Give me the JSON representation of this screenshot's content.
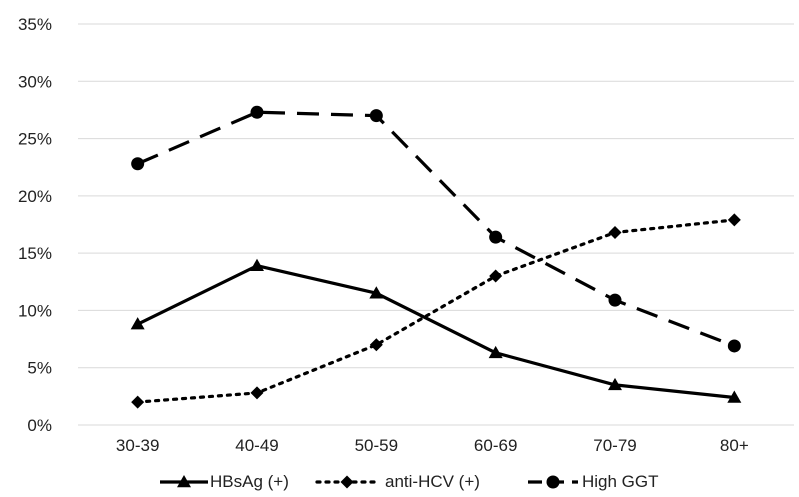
{
  "chart_data": {
    "type": "line",
    "categories": [
      "30-39",
      "40-49",
      "50-59",
      "60-69",
      "70-79",
      "80+"
    ],
    "y_ticks": [
      "0%",
      "5%",
      "10%",
      "15%",
      "20%",
      "25%",
      "30%",
      "35%"
    ],
    "ylim": [
      0,
      35
    ],
    "grid": true,
    "legend_position": "bottom",
    "series": [
      {
        "name": "HBsAg (+)",
        "values": [
          8.8,
          13.9,
          11.5,
          6.3,
          3.5,
          2.4
        ],
        "marker": "triangle",
        "line_style": "solid",
        "color": "#000000"
      },
      {
        "name": "anti-HCV (+)",
        "values": [
          2.0,
          2.8,
          7.0,
          13.0,
          16.8,
          17.9
        ],
        "marker": "diamond",
        "line_style": "dotted",
        "color": "#000000"
      },
      {
        "name": "High GGT",
        "values": [
          22.8,
          27.3,
          27.0,
          16.4,
          10.9,
          6.9
        ],
        "marker": "circle",
        "line_style": "dashed",
        "color": "#000000"
      }
    ],
    "colors": {
      "grid": "#d9d9d9",
      "text": "#222222",
      "line": "#000000"
    }
  }
}
